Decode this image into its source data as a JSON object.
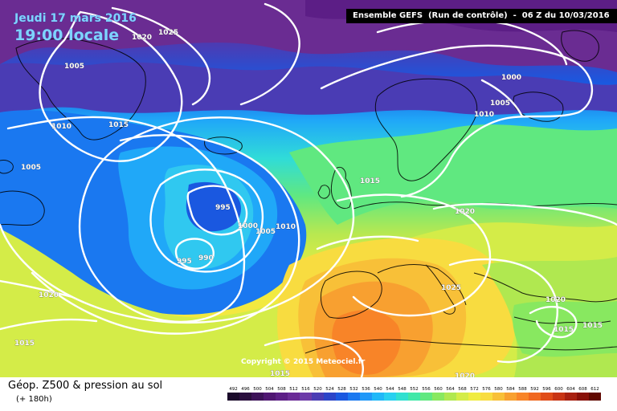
{
  "header": {
    "date": "Jeudi 17 mars 2016",
    "time": "19:00 locale",
    "run_info": "Ensemble GEFS  (Run de contrôle)  -  06 Z du 10/03/2016"
  },
  "copyright": "Copyright © 2015 Meteociel.fr",
  "footer": {
    "title": "Géop. Z500 & pression au sol",
    "subtitle": "(+ 180h)"
  },
  "isobar_labels": [
    {
      "value": "1025"
    },
    {
      "value": "1020"
    },
    {
      "value": "1005"
    },
    {
      "value": "1010"
    },
    {
      "value": "1015"
    },
    {
      "value": "1005"
    },
    {
      "value": "995"
    },
    {
      "value": "1000"
    },
    {
      "value": "1005"
    },
    {
      "value": "1010"
    },
    {
      "value": "995"
    },
    {
      "value": "990"
    },
    {
      "value": "1020"
    },
    {
      "value": "1015"
    },
    {
      "value": "1015"
    },
    {
      "value": "1000"
    },
    {
      "value": "1005"
    },
    {
      "value": "1010"
    },
    {
      "value": "1020"
    },
    {
      "value": "1025"
    },
    {
      "value": "1020"
    },
    {
      "value": "1015"
    },
    {
      "value": "1015"
    },
    {
      "value": "1020"
    },
    {
      "value": "1015"
    }
  ],
  "legend": {
    "values": [
      "492",
      "496",
      "500",
      "504",
      "508",
      "512",
      "516",
      "520",
      "524",
      "528",
      "532",
      "536",
      "540",
      "544",
      "548",
      "552",
      "556",
      "560",
      "564",
      "568",
      "572",
      "576",
      "580",
      "584",
      "588",
      "592",
      "596",
      "600",
      "604",
      "608",
      "612"
    ],
    "colors": [
      "#1a0a2a",
      "#2a0e3e",
      "#3c1258",
      "#4f1672",
      "#5c1e86",
      "#6a2a96",
      "#6c3aa8",
      "#4a3cb4",
      "#2c44c8",
      "#1a58e0",
      "#1a78f0",
      "#2098f8",
      "#20b8f8",
      "#28d0f0",
      "#30e0d0",
      "#40e8a8",
      "#60e880",
      "#88e860",
      "#b0e850",
      "#d4ec48",
      "#f0ec40",
      "#f8dc40",
      "#f8c038",
      "#f8a030",
      "#f88428",
      "#f06820",
      "#e04c18",
      "#c83414",
      "#a82010",
      "#881008",
      "#600800"
    ]
  }
}
